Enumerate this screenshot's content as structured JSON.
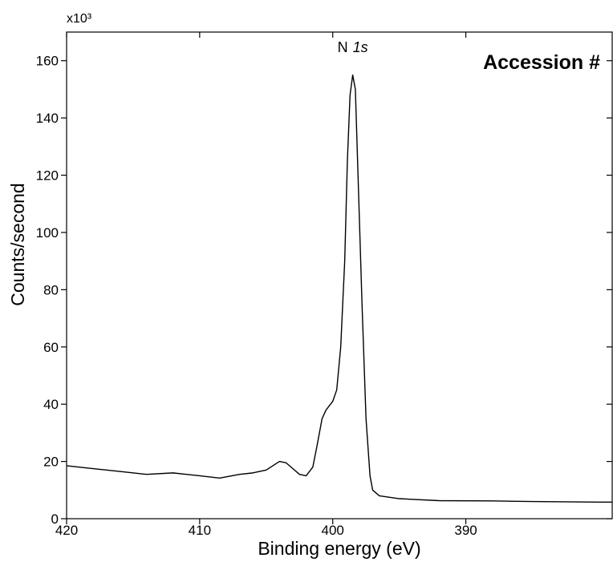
{
  "chart_data": {
    "type": "line",
    "x_label": "Binding energy (eV)",
    "y_label": "Counts/second",
    "y_multiplier": "x10³",
    "peak_label": [
      "N",
      "1s"
    ],
    "peak_label_x": 398.5,
    "peak_label_y": 163,
    "badge": "Accession #",
    "xlim": [
      420,
      379
    ],
    "ylim": [
      0,
      170
    ],
    "xticks": [
      420,
      410,
      400,
      390
    ],
    "yticks": [
      0,
      20,
      40,
      60,
      80,
      100,
      120,
      140,
      160
    ],
    "grid": false,
    "x": [
      420,
      418,
      416,
      414,
      412,
      411,
      410,
      408.5,
      407,
      406,
      405,
      404.5,
      404,
      403.5,
      403,
      402.5,
      402,
      401.5,
      401.2,
      400.8,
      400.5,
      400,
      399.7,
      399.4,
      399.1,
      398.9,
      398.7,
      398.5,
      398.3,
      398.1,
      397.8,
      397.5,
      397.2,
      397,
      396.5,
      395,
      392,
      388,
      385,
      380,
      379
    ],
    "series": [
      {
        "name": "N 1s",
        "color": "#000000",
        "values": [
          18.5,
          17.5,
          16.5,
          15.5,
          16,
          15.5,
          15,
          14.2,
          15.5,
          16,
          17,
          18.5,
          20,
          19.5,
          17.5,
          15.5,
          15,
          18,
          25,
          35,
          38,
          41,
          45,
          60,
          90,
          125,
          148,
          155,
          150,
          120,
          75,
          35,
          15,
          10,
          8,
          7,
          6.3,
          6.2,
          6,
          5.8,
          5.8
        ]
      }
    ]
  }
}
